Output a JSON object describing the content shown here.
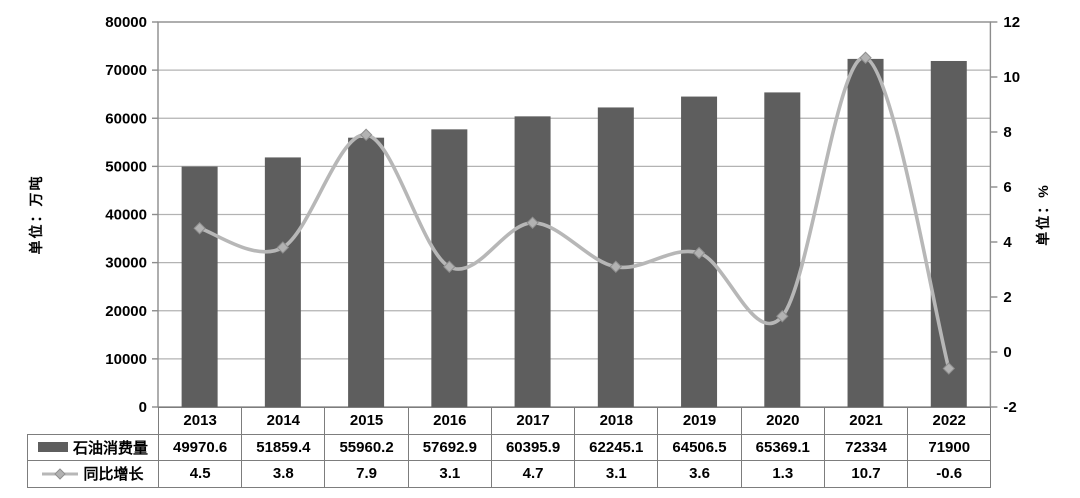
{
  "chart": {
    "left_axis": {
      "label": "单位：万吨",
      "min": 0,
      "max": 80000,
      "tick_step": 10000,
      "ticks": [
        "0",
        "10000",
        "20000",
        "30000",
        "40000",
        "50000",
        "60000",
        "70000",
        "80000"
      ]
    },
    "right_axis": {
      "label": "单位：%",
      "min": -2,
      "max": 12,
      "tick_step": 2,
      "ticks": [
        "-2",
        "0",
        "2",
        "4",
        "6",
        "8",
        "10",
        "12"
      ]
    }
  },
  "chart_data": {
    "type": "bar+line",
    "categories": [
      "2013",
      "2014",
      "2015",
      "2016",
      "2017",
      "2018",
      "2019",
      "2020",
      "2021",
      "2022"
    ],
    "series": [
      {
        "name": "石油消费量",
        "type": "bar",
        "axis": "left",
        "unit": "万吨",
        "values": [
          49970.6,
          51859.4,
          55960.2,
          57692.9,
          60395.9,
          62245.1,
          64506.5,
          65369.1,
          72334,
          71900
        ]
      },
      {
        "name": "同比增长",
        "type": "line",
        "axis": "right",
        "unit": "%",
        "marker": "diamond",
        "values": [
          4.5,
          3.8,
          7.9,
          3.1,
          4.7,
          3.1,
          3.6,
          1.3,
          10.7,
          -0.6
        ]
      }
    ],
    "ylim_left": [
      0,
      80000
    ],
    "ylim_right": [
      -2,
      12
    ],
    "grid": true,
    "gridline_source": "left_axis",
    "legend_position": "table-left"
  },
  "colors": {
    "bar": "#5e5e5e",
    "line": "#b7b7b7",
    "marker_fill": "#b2b2b2",
    "marker_stroke": "#8f8f8f",
    "gridline": "#b3b3b3",
    "axis_border": "#8c8c8c",
    "table_border": "#7d7d7d",
    "text": "#000000",
    "background": "#ffffff"
  }
}
